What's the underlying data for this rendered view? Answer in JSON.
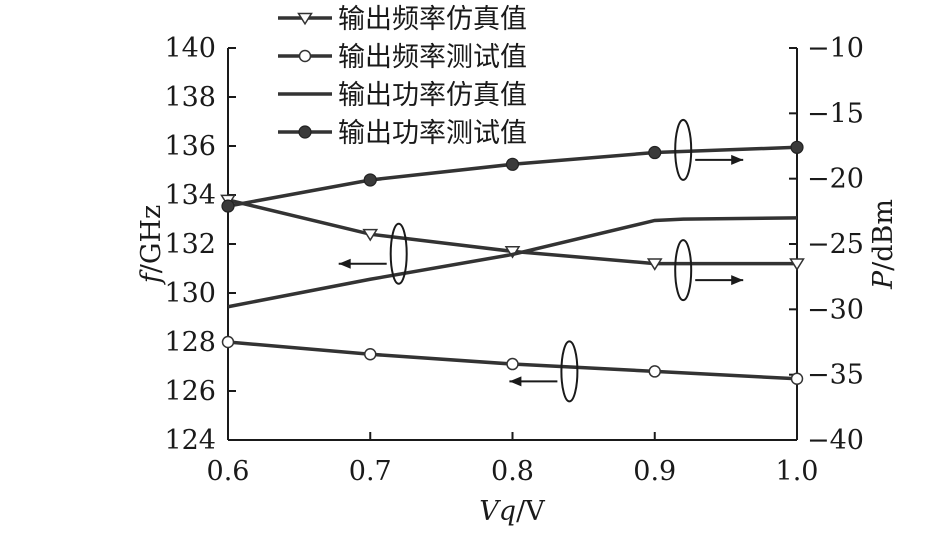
{
  "chart_data": {
    "type": "line",
    "xlabel": {
      "main": "Vq",
      "unit": "/V"
    },
    "ylabel_left": {
      "main": "f",
      "unit": "/GHz"
    },
    "ylabel_right": {
      "main": "P",
      "unit": "/dBm"
    },
    "x_ticks": [
      "0.6",
      "0.7",
      "0.8",
      "0.9",
      "1.0"
    ],
    "y_left_ticks": [
      "124",
      "126",
      "128",
      "130",
      "132",
      "134",
      "136",
      "138",
      "140"
    ],
    "y_right_ticks": [
      "−40",
      "−35",
      "−30",
      "−25",
      "−20",
      "−15",
      "−10"
    ],
    "xlim": [
      0.6,
      1.0
    ],
    "ylim_left": [
      124,
      140
    ],
    "ylim_right": [
      -40,
      -10
    ],
    "grid": false,
    "legend_position": "top-left",
    "series": [
      {
        "name": "输出频率仿真值",
        "axis": "left",
        "marker": "triangle-down-open",
        "x": [
          0.6,
          0.7,
          0.8,
          0.9,
          1.0
        ],
        "y": [
          133.8,
          132.4,
          131.7,
          131.2,
          131.2
        ]
      },
      {
        "name": "输出频率测试值",
        "axis": "left",
        "marker": "circle-open",
        "x": [
          0.6,
          0.7,
          0.8,
          0.9,
          1.0
        ],
        "y": [
          128.0,
          127.5,
          127.1,
          126.8,
          126.5
        ]
      },
      {
        "name": "输出功率仿真值",
        "axis": "right",
        "marker": "none",
        "x": [
          0.6,
          0.7,
          0.8,
          0.9,
          0.92,
          1.0
        ],
        "y": [
          -29.8,
          -27.7,
          -25.8,
          -23.2,
          -23.1,
          -23.0
        ]
      },
      {
        "name": "输出功率测试值",
        "axis": "right",
        "marker": "circle-filled",
        "x": [
          0.6,
          0.7,
          0.8,
          0.9,
          1.0
        ],
        "y": [
          -22.1,
          -20.1,
          -18.9,
          -18.0,
          -17.6
        ]
      }
    ],
    "annotations": [
      {
        "series": "输出功率测试值",
        "x": 0.92,
        "y_axis": "right",
        "y": -17.8,
        "direction": "right"
      },
      {
        "series": "输出频率仿真值",
        "x": 0.72,
        "y_axis": "left",
        "y": 131.6,
        "direction": "left"
      },
      {
        "series": "输出功率仿真值",
        "x": 0.92,
        "y_axis": "right",
        "y": -27.0,
        "direction": "right"
      },
      {
        "series": "输出频率测试值",
        "x": 0.84,
        "y_axis": "left",
        "y": 126.8,
        "direction": "left"
      }
    ]
  }
}
